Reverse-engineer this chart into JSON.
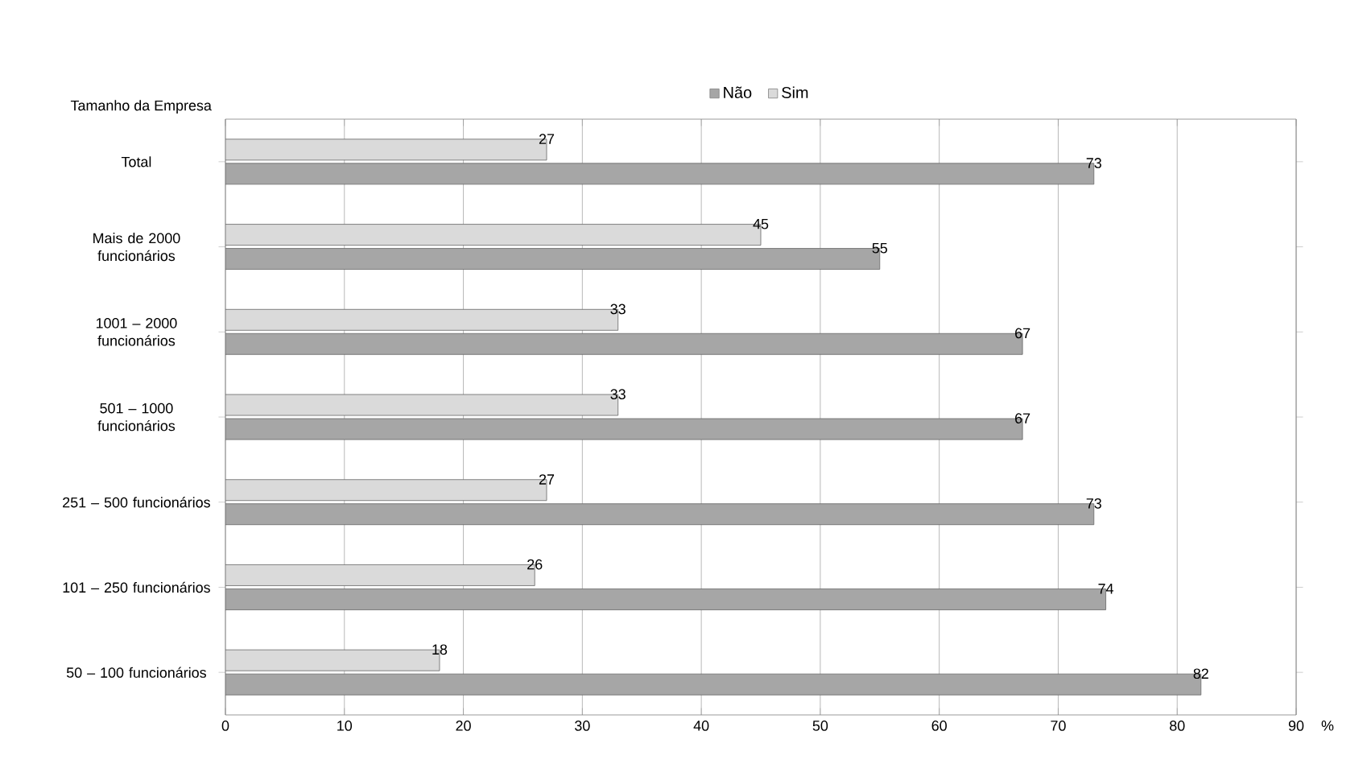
{
  "chart_data": {
    "type": "bar",
    "orientation": "horizontal",
    "ylabel": "Tamanho da Empresa",
    "xlabel": "%",
    "categories": [
      "Total",
      "Mais de 2000 funcionários",
      "1001 – 2000 funcionários",
      "501 – 1000 funcionários",
      "251 – 500 funcionários",
      "101 – 250 funcionários",
      "50 – 100 funcionários"
    ],
    "series": [
      {
        "name": "Não",
        "color": "#a6a6a6",
        "values": [
          73,
          55,
          67,
          67,
          73,
          74,
          82
        ]
      },
      {
        "name": "Sim",
        "color": "#dadada",
        "values": [
          27,
          45,
          33,
          33,
          27,
          26,
          18
        ]
      }
    ],
    "xlim": [
      0,
      90
    ],
    "xticks": [
      0,
      10,
      20,
      30,
      40,
      50,
      60,
      70,
      80,
      90
    ],
    "grid": "x",
    "legend": "top",
    "data_labels": true
  }
}
